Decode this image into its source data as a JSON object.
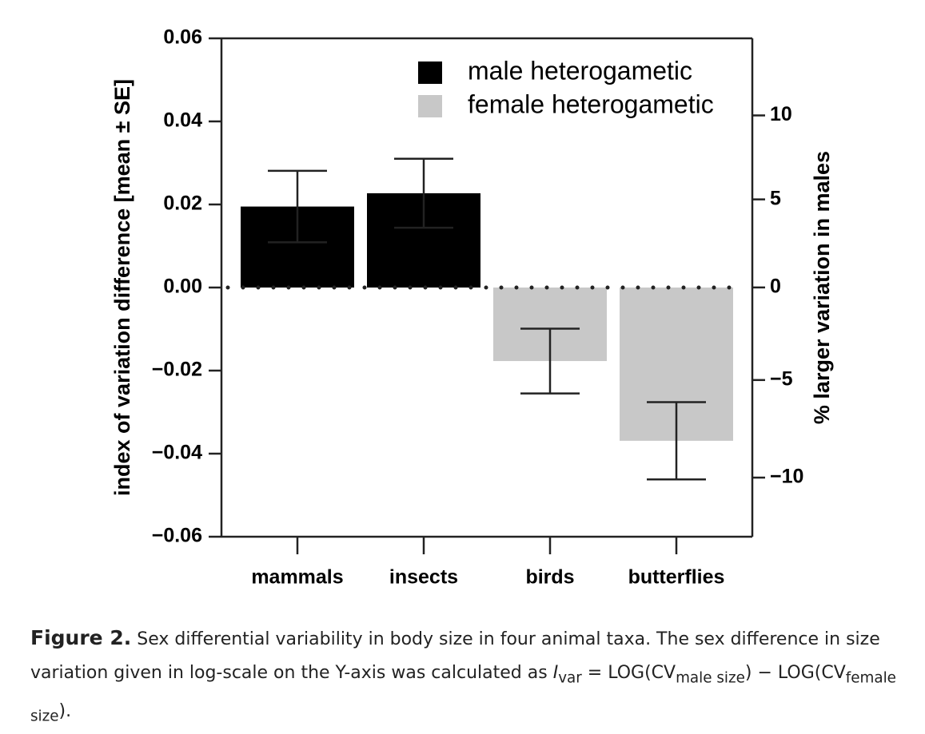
{
  "chart_data": {
    "type": "bar",
    "categories": [
      "mammals",
      "insects",
      "birds",
      "butterflies"
    ],
    "series": [
      {
        "name": "male heterogametic",
        "color": "#000000",
        "values": [
          0.0195,
          0.0227,
          null,
          null
        ],
        "errors": [
          0.0086,
          0.0083,
          null,
          null
        ]
      },
      {
        "name": "female heterogametic",
        "color": "#c8c8c8",
        "values": [
          null,
          null,
          -0.0177,
          -0.0369
        ],
        "errors": [
          null,
          null,
          0.0078,
          0.0093
        ]
      }
    ],
    "ylabel": "index of variation difference [mean ± SE]",
    "ylim": [
      -0.06,
      0.06
    ],
    "yticks": [
      {
        "value": -0.06,
        "label": "−0.06"
      },
      {
        "value": -0.04,
        "label": "−0.04"
      },
      {
        "value": -0.02,
        "label": "−0.02"
      },
      {
        "value": 0,
        "label": "0.00"
      },
      {
        "value": 0.02,
        "label": "0.02"
      },
      {
        "value": 0.04,
        "label": "0.04"
      },
      {
        "value": 0.06,
        "label": "0.06"
      }
    ],
    "y2label": "% larger variation in males",
    "y2lim": [
      -12.9,
      14.8
    ],
    "y2_scale": "log",
    "y2ticks": [
      {
        "value": -10,
        "label": "−10"
      },
      {
        "value": -5,
        "label": "−5"
      },
      0,
      5,
      10
    ],
    "zero_line": "dotted",
    "legend": "upper right"
  },
  "caption": {
    "label": "Figure 2.",
    "segments": [
      {
        "text": "Sex differential variability in body size in four animal taxa. The sex difference in size variation given in log-scale on the Y-axis was calculated as ",
        "format": "normal"
      },
      {
        "text": "I",
        "format": "italic"
      },
      {
        "text": "var",
        "format": "sub"
      },
      {
        "text": " = LOG(CV",
        "format": "normal"
      },
      {
        "text": "male size",
        "format": "sub"
      },
      {
        "text": ") − LOG(CV",
        "format": "normal"
      },
      {
        "text": "female size",
        "format": "sub"
      },
      {
        "text": ").",
        "format": "normal"
      }
    ]
  }
}
